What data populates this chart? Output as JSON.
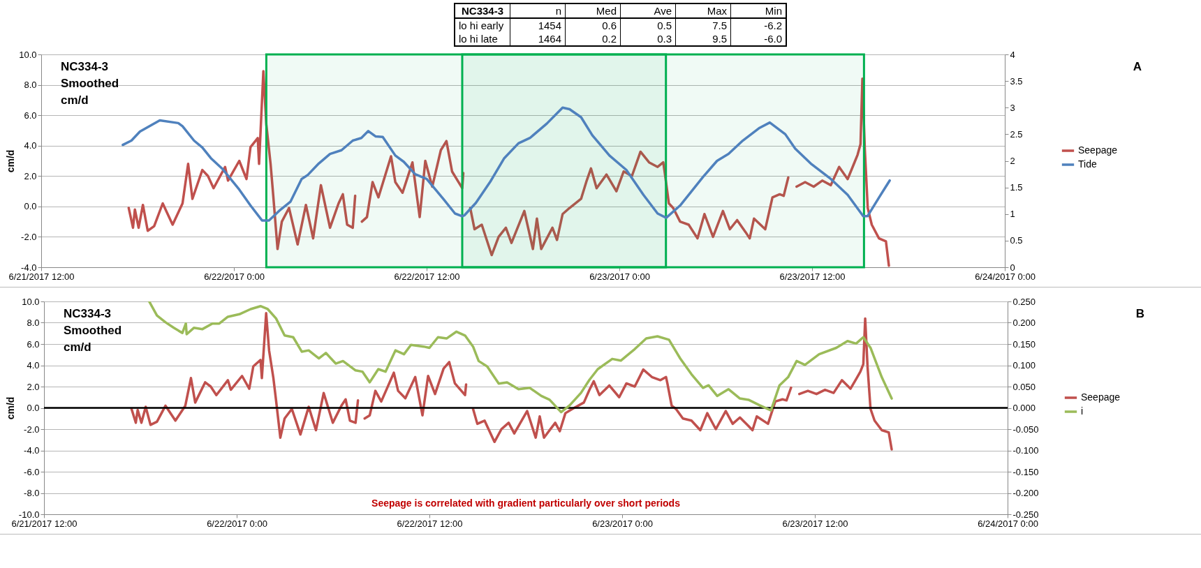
{
  "chart_data": [
    {
      "type": "line",
      "ylabel": "cm/d",
      "legend": "right",
      "grid": "y",
      "xlim": [
        "2017-06-21T12:00",
        "2017-06-24T00:00"
      ],
      "xticks": [
        {
          "value": "2017-06-21T12:00",
          "label": "6/21/2017 12:00"
        },
        {
          "value": "2017-06-22T00:00",
          "label": "6/22/2017 0:00"
        },
        {
          "value": "2017-06-22T12:00",
          "label": "6/22/2017 12:00"
        },
        {
          "value": "2017-06-23T00:00",
          "label": "6/23/2017 0:00"
        },
        {
          "value": "2017-06-23T12:00",
          "label": "6/23/2017 12:00"
        },
        {
          "value": "2017-06-24T00:00",
          "label": "6/24/2017 0:00"
        }
      ],
      "ylim": [
        -4,
        10
      ],
      "yticks": [
        {
          "value": -4,
          "label": "-4.0"
        },
        {
          "value": -2,
          "label": "-2.0"
        },
        {
          "value": 0,
          "label": "0.0"
        },
        {
          "value": 2,
          "label": "2.0"
        },
        {
          "value": 4,
          "label": "4.0"
        },
        {
          "value": 6,
          "label": "6.0"
        },
        {
          "value": 8,
          "label": "8.0"
        },
        {
          "value": 10,
          "label": "10.0"
        }
      ],
      "y2lim": [
        0,
        4
      ],
      "y2ticks": [
        0,
        0.5,
        1,
        1.5,
        2,
        2.5,
        3,
        3.5,
        4
      ],
      "series": [
        {
          "name": "Seepage",
          "color": "#c0504d",
          "x": [
            "2017-06-21T17:27",
            "2017-06-21T17:43",
            "2017-06-21T17:50",
            "2017-06-21T18:04",
            "2017-06-21T18:20",
            "2017-06-21T18:38",
            "2017-06-21T19:02",
            "2017-06-21T19:34",
            "2017-06-21T20:11",
            "2017-06-21T20:48",
            "2017-06-21T21:09",
            "2017-06-21T21:25",
            "2017-06-21T22:02",
            "2017-06-21T22:23",
            "2017-06-21T22:44",
            "2017-06-21T23:27",
            "2017-06-21T23:38",
            "2017-06-22T00:20",
            "2017-06-22T00:47",
            "2017-06-22T01:02",
            "2017-06-22T01:29",
            "2017-06-22T01:34",
            "2017-06-22T01:50",
            "2017-06-22T02:01",
            "2017-06-22T02:17",
            "2017-06-22T02:27",
            "2017-06-22T02:43",
            "2017-06-22T02:59",
            "2017-06-22T03:26",
            "2017-06-22T03:58",
            "2017-06-22T04:29",
            "2017-06-22T04:56",
            "2017-06-22T05:25",
            "2017-06-22T05:59",
            "2017-06-22T06:31",
            "2017-06-22T06:47",
            "2017-06-22T07:03",
            "2017-06-22T07:24",
            "2017-06-22T07:33",
            "2017-06-22T07:46",
            "2017-06-22T07:58",
            "2017-06-22T08:17",
            "2017-06-22T08:38",
            "2017-06-22T09:00",
            "2017-06-22T09:47",
            "2017-06-22T10:03",
            "2017-06-22T10:30",
            "2017-06-22T11:07",
            "2017-06-22T11:34",
            "2017-06-22T11:55",
            "2017-06-22T12:21",
            "2017-06-22T12:53",
            "2017-06-22T13:14",
            "2017-06-22T13:35",
            "2017-06-22T14:13",
            "2017-06-22T14:17",
            "2017-06-22T14:30",
            "2017-06-22T14:43",
            "2017-06-22T14:59",
            "2017-06-22T15:26",
            "2017-06-22T16:03",
            "2017-06-22T16:29",
            "2017-06-22T16:56",
            "2017-06-22T17:17",
            "2017-06-22T18:05",
            "2017-06-22T18:37",
            "2017-06-22T18:52",
            "2017-06-22T19:08",
            "2017-06-22T19:50",
            "2017-06-22T20:07",
            "2017-06-22T20:28",
            "2017-06-22T20:54",
            "2017-06-22T21:37",
            "2017-06-22T21:58",
            "2017-06-22T22:14",
            "2017-06-22T22:35",
            "2017-06-22T23:12",
            "2017-06-22T23:49",
            "2017-06-23T00:16",
            "2017-06-23T00:47",
            "2017-06-23T01:19",
            "2017-06-23T01:51",
            "2017-06-23T02:23",
            "2017-06-23T02:44",
            "2017-06-23T02:49",
            "2017-06-23T03:05",
            "2017-06-23T03:21",
            "2017-06-23T03:47",
            "2017-06-23T04:19",
            "2017-06-23T04:52",
            "2017-06-23T05:18",
            "2017-06-23T05:50",
            "2017-06-23T06:27",
            "2017-06-23T06:53",
            "2017-06-23T07:20",
            "2017-06-23T07:52",
            "2017-06-23T08:07",
            "2017-06-23T08:23",
            "2017-06-23T09:05",
            "2017-06-23T09:32",
            "2017-06-23T09:59",
            "2017-06-23T10:14",
            "2017-06-23T10:31",
            "2017-06-23T10:47",
            "2017-06-23T11:02",
            "2017-06-23T11:34",
            "2017-06-23T12:06",
            "2017-06-23T12:38",
            "2017-06-23T13:10",
            "2017-06-23T13:41",
            "2017-06-23T14:13",
            "2017-06-23T14:34",
            "2017-06-23T14:50",
            "2017-06-23T15:01",
            "2017-06-23T15:08",
            "2017-06-23T15:17",
            "2017-06-23T15:28",
            "2017-06-23T15:43",
            "2017-06-23T16:10",
            "2017-06-23T16:36",
            "2017-06-23T16:47"
          ],
          "values": [
            -0.1,
            -1.4,
            -0.2,
            -1.4,
            0.1,
            -1.6,
            -1.3,
            0.2,
            -1.2,
            0.2,
            2.8,
            0.5,
            2.4,
            2.0,
            1.2,
            2.6,
            1.7,
            3.0,
            1.8,
            3.9,
            4.5,
            2.8,
            8.9,
            5.4,
            2.8,
            0.7,
            -2.8,
            -1.0,
            -0.1,
            -2.5,
            0.1,
            -2.1,
            1.4,
            -1.4,
            0.2,
            0.8,
            -1.2,
            -1.4,
            0.7,
            null,
            -1.0,
            -0.7,
            1.6,
            0.6,
            3.3,
            1.6,
            0.9,
            2.9,
            -0.7,
            3.0,
            1.3,
            3.7,
            4.3,
            2.3,
            1.2,
            2.2,
            null,
            -0.1,
            -1.5,
            -1.2,
            -3.2,
            -2.0,
            -1.4,
            -2.4,
            -0.3,
            -2.8,
            -0.8,
            -2.8,
            -1.4,
            -2.2,
            -0.5,
            -0.1,
            0.5,
            1.7,
            2.5,
            1.2,
            2.1,
            1.0,
            2.3,
            2.0,
            3.6,
            2.9,
            2.6,
            2.9,
            2.3,
            0.2,
            -0.1,
            -1.0,
            -1.2,
            -2.1,
            -0.5,
            -2.0,
            -0.3,
            -1.5,
            -0.9,
            -1.7,
            -2.1,
            -0.8,
            -1.5,
            0.6,
            0.8,
            0.7,
            1.9,
            null,
            1.3,
            1.6,
            1.3,
            1.7,
            1.4,
            2.6,
            1.8,
            2.7,
            3.4,
            4.1,
            8.4,
            3.8,
            -0.1,
            -1.2,
            -2.1,
            -2.3,
            -3.9
          ]
        },
        {
          "name": "Tide",
          "color": "#4f81bd",
          "axis": "y2",
          "x": [
            "2017-06-21T17:05",
            "2017-06-21T17:37",
            "2017-06-21T18:09",
            "2017-06-21T19:23",
            "2017-06-21T20:32",
            "2017-06-21T20:48",
            "2017-06-21T21:31",
            "2017-06-21T22:02",
            "2017-06-21T22:34",
            "2017-06-21T23:17",
            "2017-06-22T00:20",
            "2017-06-22T01:02",
            "2017-06-22T01:45",
            "2017-06-22T02:11",
            "2017-06-22T02:49",
            "2017-06-22T03:31",
            "2017-06-22T04:13",
            "2017-06-22T04:35",
            "2017-06-22T05:17",
            "2017-06-22T05:59",
            "2017-06-22T06:42",
            "2017-06-22T07:24",
            "2017-06-22T07:56",
            "2017-06-22T08:22",
            "2017-06-22T08:49",
            "2017-06-22T09:16",
            "2017-06-22T10:03",
            "2017-06-22T10:35",
            "2017-06-22T11:17",
            "2017-06-22T12:00",
            "2017-06-22T13:03",
            "2017-06-22T13:46",
            "2017-06-22T14:13",
            "2017-06-22T14:22",
            "2017-06-22T15:04",
            "2017-06-22T15:58",
            "2017-06-22T16:50",
            "2017-06-22T17:43",
            "2017-06-22T18:26",
            "2017-06-22T19:29",
            "2017-06-22T20:28",
            "2017-06-22T20:54",
            "2017-06-22T21:37",
            "2017-06-22T22:19",
            "2017-06-22T23:23",
            "2017-06-23T00:26",
            "2017-06-23T01:30",
            "2017-06-23T02:23",
            "2017-06-23T02:55",
            "2017-06-23T03:47",
            "2017-06-23T05:13",
            "2017-06-23T06:05",
            "2017-06-23T06:48",
            "2017-06-23T07:41",
            "2017-06-23T08:44",
            "2017-06-23T09:22",
            "2017-06-23T10:20",
            "2017-06-23T10:57",
            "2017-06-23T11:55",
            "2017-06-23T13:10",
            "2017-06-23T14:13",
            "2017-06-23T15:11",
            "2017-06-23T15:27",
            "2017-06-23T16:10",
            "2017-06-23T16:50"
          ],
          "values": [
            2.3,
            2.38,
            2.55,
            2.76,
            2.71,
            2.65,
            2.38,
            2.25,
            2.05,
            1.85,
            1.46,
            1.16,
            0.88,
            0.88,
            1.06,
            1.23,
            1.66,
            1.73,
            1.95,
            2.13,
            2.2,
            2.38,
            2.43,
            2.56,
            2.46,
            2.45,
            2.1,
            1.98,
            1.75,
            1.66,
            1.28,
            1.01,
            0.96,
            0.98,
            1.21,
            1.61,
            2.05,
            2.33,
            2.43,
            2.7,
            3.0,
            2.97,
            2.82,
            2.48,
            2.1,
            1.83,
            1.36,
            1.01,
            0.93,
            1.16,
            1.7,
            2.0,
            2.13,
            2.38,
            2.62,
            2.72,
            2.5,
            2.23,
            1.95,
            1.66,
            1.36,
            0.96,
            0.96,
            1.31,
            1.63
          ]
        }
      ],
      "bands": [
        {
          "axis": "x",
          "from": "2017-06-22T02:01",
          "to": "2017-06-23T02:54",
          "color": "#00b050"
        },
        {
          "axis": "x",
          "from": "2017-06-22T14:13",
          "to": "2017-06-23T15:14",
          "color": "#00b050"
        }
      ],
      "annotations": [
        "NC334-3\nSmoothed\ncm/d",
        "A",
        "NC334-3",
        "n",
        "Med",
        "Ave",
        "Max",
        "Min",
        "lo hi early",
        "1454",
        "0.6",
        "0.5",
        "7.5",
        "-6.2",
        "lo hi late",
        "1464",
        "0.2",
        "0.3",
        "9.5",
        "-6.0"
      ]
    },
    {
      "type": "line",
      "ylabel": "cm/d",
      "legend": "right",
      "grid": "y",
      "xlim": [
        "2017-06-21T12:00",
        "2017-06-24T00:00"
      ],
      "xticks": [
        {
          "value": "2017-06-21T12:00",
          "label": "6/21/2017 12:00"
        },
        {
          "value": "2017-06-22T00:00",
          "label": "6/22/2017 0:00"
        },
        {
          "value": "2017-06-22T12:00",
          "label": "6/22/2017 12:00"
        },
        {
          "value": "2017-06-23T00:00",
          "label": "6/23/2017 0:00"
        },
        {
          "value": "2017-06-23T12:00",
          "label": "6/23/2017 12:00"
        },
        {
          "value": "2017-06-24T00:00",
          "label": "6/24/2017 0:00"
        }
      ],
      "ylim": [
        -10,
        10
      ],
      "yticks": [
        {
          "value": -10,
          "label": "-10.0"
        },
        {
          "value": -8,
          "label": "-8.0"
        },
        {
          "value": -6,
          "label": "-6.0"
        },
        {
          "value": -4,
          "label": "-4.0"
        },
        {
          "value": -2,
          "label": "-2.0"
        },
        {
          "value": 0,
          "label": "0.0"
        },
        {
          "value": 2,
          "label": "2.0"
        },
        {
          "value": 4,
          "label": "4.0"
        },
        {
          "value": 6,
          "label": "6.0"
        },
        {
          "value": 8,
          "label": "8.0"
        },
        {
          "value": 10,
          "label": "10.0"
        }
      ],
      "y2lim": [
        -0.25,
        0.25
      ],
      "y2ticks": [
        {
          "value": -0.25,
          "label": "-0.250"
        },
        {
          "value": -0.2,
          "label": "-0.200"
        },
        {
          "value": -0.15,
          "label": "-0.150"
        },
        {
          "value": -0.1,
          "label": "-0.100"
        },
        {
          "value": -0.05,
          "label": "-0.050"
        },
        {
          "value": 0,
          "label": "0.000"
        },
        {
          "value": 0.05,
          "label": "0.050"
        },
        {
          "value": 0.1,
          "label": "0.100"
        },
        {
          "value": 0.15,
          "label": "0.150"
        },
        {
          "value": 0.2,
          "label": "0.200"
        },
        {
          "value": 0.25,
          "label": "0.250"
        }
      ],
      "series": [
        {
          "name": "Seepage",
          "color": "#c0504d",
          "x": [
            "2017-06-21T17:27",
            "2017-06-21T17:43",
            "2017-06-21T17:50",
            "2017-06-21T18:04",
            "2017-06-21T18:20",
            "2017-06-21T18:38",
            "2017-06-21T19:02",
            "2017-06-21T19:34",
            "2017-06-21T20:11",
            "2017-06-21T20:48",
            "2017-06-21T21:09",
            "2017-06-21T21:25",
            "2017-06-21T22:02",
            "2017-06-21T22:23",
            "2017-06-21T22:44",
            "2017-06-21T23:27",
            "2017-06-21T23:38",
            "2017-06-22T00:20",
            "2017-06-22T00:47",
            "2017-06-22T01:02",
            "2017-06-22T01:29",
            "2017-06-22T01:34",
            "2017-06-22T01:50",
            "2017-06-22T02:01",
            "2017-06-22T02:17",
            "2017-06-22T02:27",
            "2017-06-22T02:43",
            "2017-06-22T02:59",
            "2017-06-22T03:26",
            "2017-06-22T03:58",
            "2017-06-22T04:29",
            "2017-06-22T04:56",
            "2017-06-22T05:25",
            "2017-06-22T05:59",
            "2017-06-22T06:31",
            "2017-06-22T06:47",
            "2017-06-22T07:03",
            "2017-06-22T07:24",
            "2017-06-22T07:33",
            "2017-06-22T07:46",
            "2017-06-22T07:58",
            "2017-06-22T08:17",
            "2017-06-22T08:38",
            "2017-06-22T09:00",
            "2017-06-22T09:47",
            "2017-06-22T10:03",
            "2017-06-22T10:30",
            "2017-06-22T11:07",
            "2017-06-22T11:34",
            "2017-06-22T11:55",
            "2017-06-22T12:21",
            "2017-06-22T12:53",
            "2017-06-22T13:14",
            "2017-06-22T13:35",
            "2017-06-22T14:13",
            "2017-06-22T14:17",
            "2017-06-22T14:30",
            "2017-06-22T14:43",
            "2017-06-22T14:59",
            "2017-06-22T15:26",
            "2017-06-22T16:03",
            "2017-06-22T16:29",
            "2017-06-22T16:56",
            "2017-06-22T17:17",
            "2017-06-22T18:05",
            "2017-06-22T18:37",
            "2017-06-22T18:52",
            "2017-06-22T19:08",
            "2017-06-22T19:50",
            "2017-06-22T20:07",
            "2017-06-22T20:28",
            "2017-06-22T20:54",
            "2017-06-22T21:37",
            "2017-06-22T21:58",
            "2017-06-22T22:14",
            "2017-06-22T22:35",
            "2017-06-22T23:12",
            "2017-06-22T23:49",
            "2017-06-23T00:16",
            "2017-06-23T00:47",
            "2017-06-23T01:19",
            "2017-06-23T01:51",
            "2017-06-23T02:23",
            "2017-06-23T02:44",
            "2017-06-23T02:49",
            "2017-06-23T03:05",
            "2017-06-23T03:21",
            "2017-06-23T03:47",
            "2017-06-23T04:19",
            "2017-06-23T04:52",
            "2017-06-23T05:18",
            "2017-06-23T05:50",
            "2017-06-23T06:27",
            "2017-06-23T06:53",
            "2017-06-23T07:20",
            "2017-06-23T07:52",
            "2017-06-23T08:07",
            "2017-06-23T08:23",
            "2017-06-23T09:05",
            "2017-06-23T09:32",
            "2017-06-23T09:59",
            "2017-06-23T10:14",
            "2017-06-23T10:31",
            "2017-06-23T10:47",
            "2017-06-23T11:02",
            "2017-06-23T11:34",
            "2017-06-23T12:06",
            "2017-06-23T12:38",
            "2017-06-23T13:10",
            "2017-06-23T13:41",
            "2017-06-23T14:13",
            "2017-06-23T14:34",
            "2017-06-23T14:50",
            "2017-06-23T15:01",
            "2017-06-23T15:08",
            "2017-06-23T15:17",
            "2017-06-23T15:28",
            "2017-06-23T15:43",
            "2017-06-23T16:10",
            "2017-06-23T16:36",
            "2017-06-23T16:47"
          ],
          "values": [
            -0.1,
            -1.4,
            -0.2,
            -1.4,
            0.1,
            -1.6,
            -1.3,
            0.2,
            -1.2,
            0.2,
            2.8,
            0.5,
            2.4,
            2.0,
            1.2,
            2.6,
            1.7,
            3.0,
            1.8,
            3.9,
            4.5,
            2.8,
            8.9,
            5.4,
            2.8,
            0.7,
            -2.8,
            -1.0,
            -0.1,
            -2.5,
            0.1,
            -2.1,
            1.4,
            -1.4,
            0.2,
            0.8,
            -1.2,
            -1.4,
            0.7,
            null,
            -1.0,
            -0.7,
            1.6,
            0.6,
            3.3,
            1.6,
            0.9,
            2.9,
            -0.7,
            3.0,
            1.3,
            3.7,
            4.3,
            2.3,
            1.2,
            2.2,
            null,
            -0.1,
            -1.5,
            -1.2,
            -3.2,
            -2.0,
            -1.4,
            -2.4,
            -0.3,
            -2.8,
            -0.8,
            -2.8,
            -1.4,
            -2.2,
            -0.5,
            -0.1,
            0.5,
            1.7,
            2.5,
            1.2,
            2.1,
            1.0,
            2.3,
            2.0,
            3.6,
            2.9,
            2.6,
            2.9,
            2.3,
            0.2,
            -0.1,
            -1.0,
            -1.2,
            -2.1,
            -0.5,
            -2.0,
            -0.3,
            -1.5,
            -0.9,
            -1.7,
            -2.1,
            -0.8,
            -1.5,
            0.6,
            0.8,
            0.7,
            1.9,
            null,
            1.3,
            1.6,
            1.3,
            1.7,
            1.4,
            2.6,
            1.8,
            2.7,
            3.4,
            4.1,
            8.4,
            3.8,
            -0.1,
            -1.2,
            -2.1,
            -2.3,
            -3.9
          ]
        },
        {
          "name": "i",
          "color": "#9bbb59",
          "axis": "y2",
          "x": [
            "2017-06-21T18:33",
            "2017-06-21T19:02",
            "2017-06-21T19:34",
            "2017-06-21T20:05",
            "2017-06-21T20:37",
            "2017-06-21T20:50",
            "2017-06-21T20:53",
            "2017-06-21T21:20",
            "2017-06-21T21:52",
            "2017-06-21T22:29",
            "2017-06-21T22:55",
            "2017-06-21T23:27",
            "2017-06-22T00:10",
            "2017-06-22T00:52",
            "2017-06-22T01:29",
            "2017-06-22T01:56",
            "2017-06-22T02:27",
            "2017-06-22T02:59",
            "2017-06-22T03:31",
            "2017-06-22T04:03",
            "2017-06-22T04:29",
            "2017-06-22T05:07",
            "2017-06-22T05:33",
            "2017-06-22T06:10",
            "2017-06-22T06:37",
            "2017-06-22T07:24",
            "2017-06-22T07:50",
            "2017-06-22T08:17",
            "2017-06-22T08:49",
            "2017-06-22T09:16",
            "2017-06-22T09:53",
            "2017-06-22T10:25",
            "2017-06-22T10:51",
            "2017-06-22T11:38",
            "2017-06-22T12:00",
            "2017-06-22T12:32",
            "2017-06-22T13:04",
            "2017-06-22T13:41",
            "2017-06-22T14:13",
            "2017-06-22T14:43",
            "2017-06-22T15:04",
            "2017-06-22T15:36",
            "2017-06-22T16:19",
            "2017-06-22T16:50",
            "2017-06-22T17:33",
            "2017-06-22T18:15",
            "2017-06-22T18:58",
            "2017-06-22T19:29",
            "2017-06-22T20:12",
            "2017-06-22T20:44",
            "2017-06-22T21:26",
            "2017-06-22T21:58",
            "2017-06-22T22:29",
            "2017-06-22T23:23",
            "2017-06-22T23:55",
            "2017-06-23T00:47",
            "2017-06-23T01:30",
            "2017-06-23T02:12",
            "2017-06-23T02:55",
            "2017-06-23T03:37",
            "2017-06-23T04:19",
            "2017-06-23T05:02",
            "2017-06-23T05:23",
            "2017-06-23T05:55",
            "2017-06-23T06:37",
            "2017-06-23T07:20",
            "2017-06-23T07:52",
            "2017-06-23T08:34",
            "2017-06-23T09:16",
            "2017-06-23T09:48",
            "2017-06-23T10:20",
            "2017-06-23T10:52",
            "2017-06-23T11:23",
            "2017-06-23T12:16",
            "2017-06-23T13:20",
            "2017-06-23T14:02",
            "2017-06-23T14:34",
            "2017-06-23T15:01",
            "2017-06-23T15:28",
            "2017-06-23T16:10",
            "2017-06-23T16:47"
          ],
          "values": [
            0.25,
            0.217,
            0.201,
            0.188,
            0.176,
            0.198,
            0.173,
            0.188,
            0.185,
            0.198,
            0.198,
            0.214,
            0.22,
            0.232,
            0.239,
            0.232,
            0.21,
            0.17,
            0.166,
            0.132,
            0.135,
            0.116,
            0.129,
            0.104,
            0.11,
            0.088,
            0.085,
            0.06,
            0.091,
            0.085,
            0.135,
            0.126,
            0.148,
            0.144,
            0.141,
            0.166,
            0.163,
            0.179,
            0.17,
            0.144,
            0.11,
            0.097,
            0.057,
            0.06,
            0.044,
            0.047,
            0.028,
            0.019,
            -0.01,
            0.006,
            0.035,
            0.066,
            0.091,
            0.115,
            0.111,
            0.138,
            0.163,
            0.168,
            0.16,
            0.116,
            0.079,
            0.047,
            0.053,
            0.028,
            0.044,
            0.022,
            0.019,
            0.006,
            -0.006,
            0.053,
            0.072,
            0.11,
            0.101,
            0.126,
            0.141,
            0.157,
            0.151,
            0.166,
            0.141,
            0.072,
            0.022
          ]
        }
      ],
      "ref_lines": [
        {
          "axis": "y",
          "value": 0,
          "color": "#000000"
        }
      ],
      "annotations": [
        "NC334-3\nSmoothed\ncm/d",
        "B",
        "Seepage is correlated with gradient particularly over short periods"
      ]
    }
  ]
}
